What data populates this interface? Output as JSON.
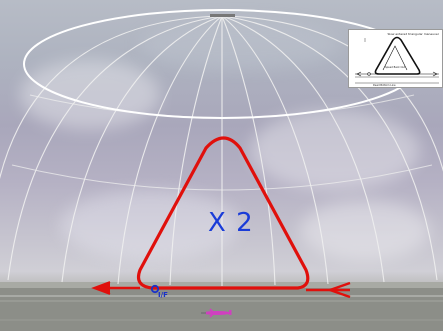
{
  "scene": {
    "title": "",
    "multiplier_label": "X 2",
    "marker_label": "I/F",
    "colors": {
      "path": "#e0100c",
      "label": "#1a3cd8",
      "dome": "#f2f2f2",
      "aircraft": "#d040c0"
    }
  },
  "inset": {
    "title": "Slow entered triangular maneuver",
    "bottom_label": "Dead Bottom Line",
    "side_label": "Speed Back Out"
  },
  "icons": {
    "aircraft": "aircraft-icon",
    "marker": "circle-marker-icon"
  }
}
